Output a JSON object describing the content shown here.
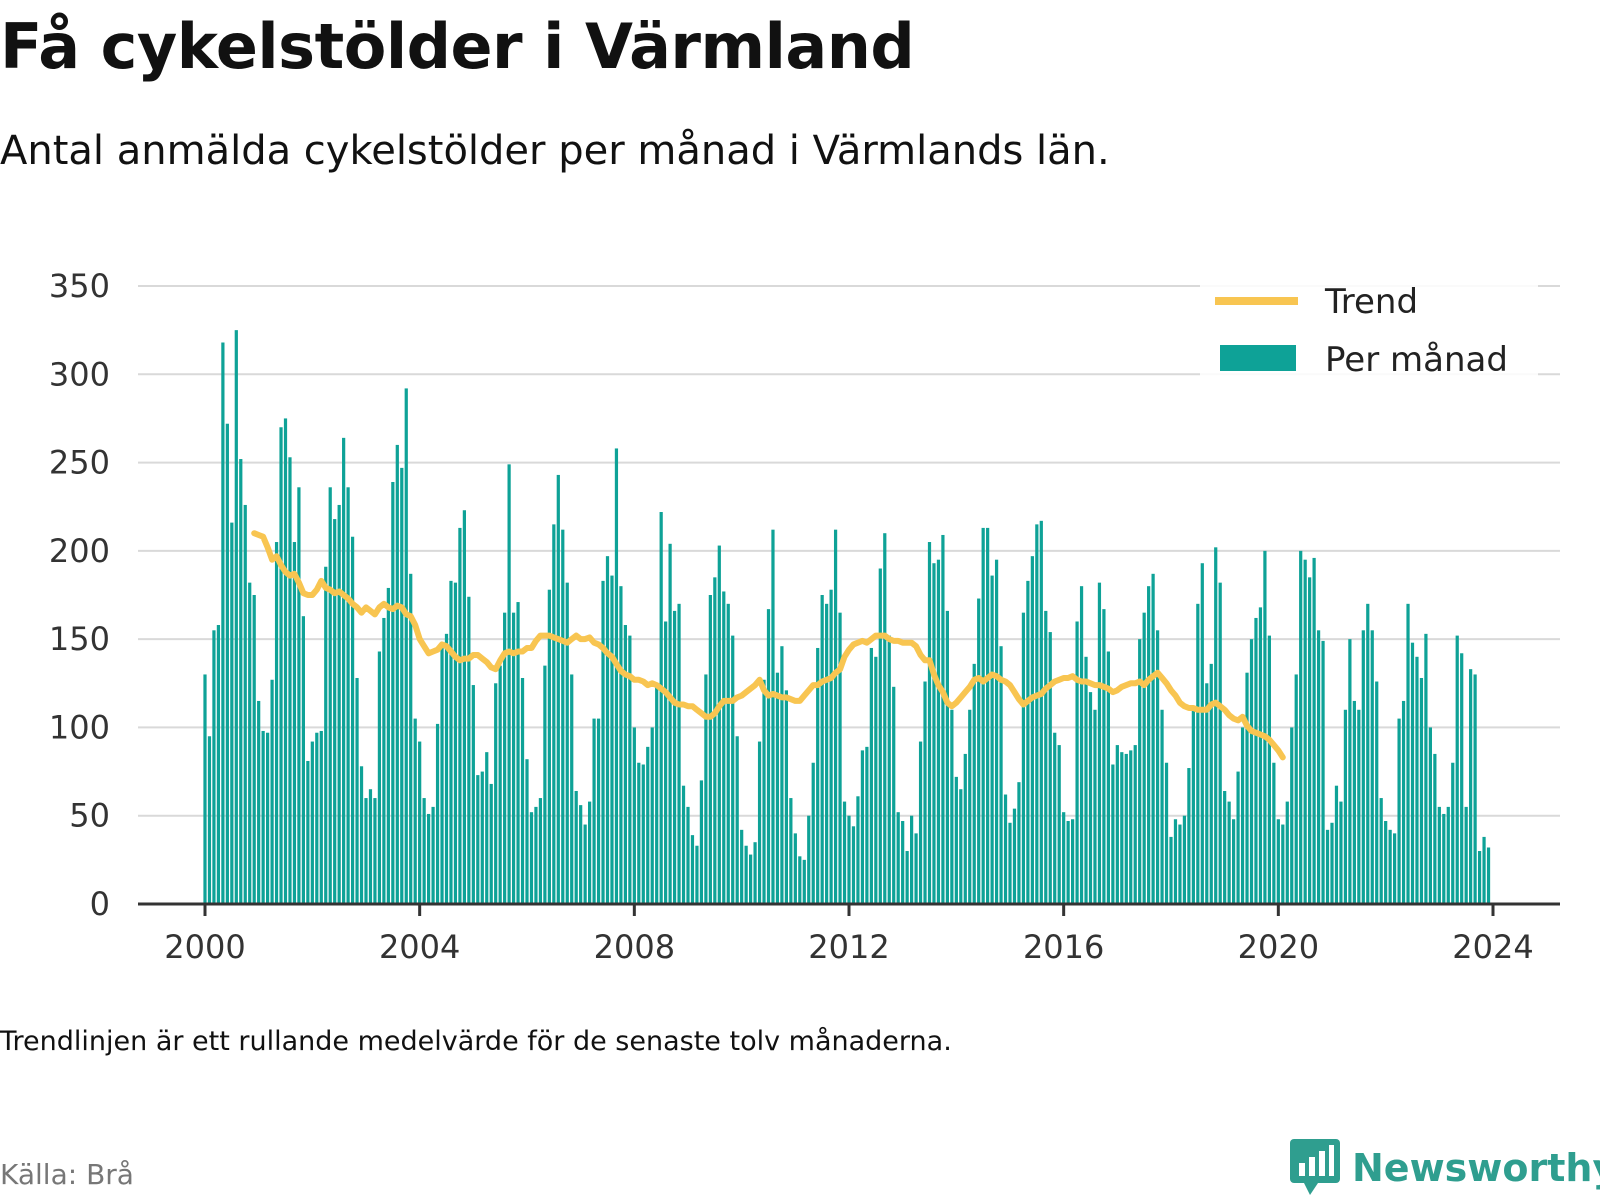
{
  "title": "Få cykelstölder i Värmland",
  "subtitle": "Antal anmälda cykelstölder per månad i Värmlands län.",
  "note": "Trendlinjen är ett rullande medelvärde för de senaste tolv månaderna.",
  "source": "Källa: Brå",
  "brand": "Newsworthy",
  "colors": {
    "bars": "#0ea297",
    "trend": "#f8c551",
    "grid": "#d9d9d9",
    "axis": "#333333",
    "brand": "#2f9e8f"
  },
  "chart_data": {
    "type": "bar",
    "ylim": [
      0,
      350
    ],
    "yticks": [
      0,
      50,
      100,
      150,
      200,
      250,
      300,
      350
    ],
    "xlim": [
      2000,
      2024
    ],
    "xticks": [
      "2000",
      "2004",
      "2008",
      "2012",
      "2016",
      "2020",
      "2024"
    ],
    "grid": true,
    "legend_position": "top-right",
    "bar_series": {
      "name": "Per månad",
      "start": "2000-01",
      "values": [
        130,
        95,
        155,
        158,
        318,
        272,
        216,
        325,
        252,
        226,
        182,
        175,
        115,
        98,
        97,
        127,
        205,
        270,
        275,
        253,
        205,
        236,
        163,
        81,
        92,
        97,
        98,
        191,
        236,
        218,
        226,
        264,
        236,
        208,
        128,
        78,
        60,
        65,
        60,
        143,
        162,
        179,
        239,
        260,
        247,
        292,
        187,
        105,
        92,
        60,
        51,
        55,
        102,
        145,
        153,
        183,
        182,
        213,
        223,
        174,
        124,
        73,
        75,
        86,
        68,
        125,
        135,
        165,
        249,
        165,
        171,
        128,
        82,
        52,
        55,
        60,
        135,
        178,
        215,
        243,
        212,
        182,
        130,
        64,
        56,
        45,
        58,
        105,
        105,
        183,
        197,
        186,
        258,
        180,
        158,
        152,
        100,
        80,
        79,
        89,
        100,
        125,
        222,
        160,
        204,
        166,
        170,
        67,
        55,
        39,
        33,
        70,
        130,
        175,
        185,
        203,
        177,
        170,
        152,
        95,
        42,
        33,
        28,
        35,
        92,
        127,
        167,
        212,
        131,
        146,
        121,
        60,
        40,
        27,
        25,
        50,
        80,
        145,
        175,
        170,
        178,
        212,
        165,
        58,
        50,
        44,
        61,
        87,
        89,
        145,
        140,
        190,
        210,
        152,
        123,
        52,
        47,
        30,
        50,
        40,
        92,
        126,
        205,
        193,
        195,
        209,
        166,
        110,
        72,
        65,
        85,
        110,
        136,
        173,
        213,
        213,
        186,
        195,
        146,
        62,
        46,
        54,
        69,
        165,
        183,
        197,
        215,
        217,
        166,
        154,
        97,
        90,
        52,
        47,
        48,
        160,
        180,
        140,
        120,
        110,
        182,
        167,
        143,
        79,
        90,
        86,
        85,
        87,
        90,
        150,
        165,
        180,
        187,
        155,
        110,
        80,
        38,
        48,
        45,
        50,
        77,
        110,
        170,
        193,
        125,
        136,
        202,
        182,
        64,
        58,
        48,
        75,
        100,
        131,
        150,
        162,
        168,
        200,
        152,
        80,
        48,
        45,
        58,
        100,
        130,
        200,
        195,
        185,
        196,
        155,
        149,
        42,
        46,
        67,
        58,
        110,
        150,
        115,
        110,
        155,
        170,
        155,
        126,
        60,
        47,
        42,
        40,
        105,
        115,
        170,
        148,
        140,
        128,
        153,
        100,
        85,
        55,
        51,
        55,
        80,
        152,
        142,
        55,
        133,
        130,
        30,
        38,
        32
      ]
    },
    "line_series": {
      "name": "Trend",
      "start": "2000-12",
      "values": [
        210,
        209,
        208,
        202,
        195,
        197,
        192,
        188,
        186,
        187,
        182,
        176,
        175,
        175,
        178,
        183,
        179,
        178,
        176,
        177,
        175,
        173,
        170,
        168,
        165,
        168,
        166,
        164,
        168,
        170,
        168,
        167,
        169,
        168,
        164,
        163,
        158,
        150,
        146,
        142,
        143,
        144,
        147,
        146,
        143,
        140,
        138,
        139,
        139,
        141,
        141,
        139,
        137,
        134,
        133,
        138,
        142,
        143,
        142,
        143,
        143,
        145,
        145,
        149,
        152,
        152,
        152,
        151,
        150,
        149,
        148,
        150,
        152,
        150,
        150,
        151,
        148,
        147,
        145,
        142,
        140,
        136,
        132,
        130,
        129,
        127,
        127,
        126,
        124,
        125,
        124,
        122,
        120,
        117,
        114,
        113,
        113,
        112,
        112,
        110,
        108,
        106,
        106,
        108,
        112,
        115,
        115,
        115,
        117,
        118,
        120,
        122,
        124,
        127,
        121,
        118,
        119,
        118,
        117,
        117,
        116,
        115,
        115,
        118,
        121,
        124,
        124,
        126,
        127,
        128,
        131,
        133,
        140,
        144,
        147,
        148,
        149,
        148,
        150,
        152,
        152,
        152,
        150,
        149,
        149,
        148,
        148,
        148,
        146,
        141,
        138,
        138,
        130,
        124,
        120,
        114,
        112,
        114,
        117,
        120,
        123,
        127,
        128,
        126,
        128,
        130,
        129,
        127,
        126,
        124,
        120,
        116,
        113,
        115,
        117,
        118,
        119,
        122,
        124,
        126,
        127,
        128,
        128,
        129,
        127,
        126,
        126,
        125,
        124,
        124,
        123,
        122,
        120,
        121,
        123,
        124,
        125,
        125,
        126,
        124,
        127,
        129,
        131,
        128,
        125,
        121,
        118,
        114,
        112,
        111,
        111,
        110,
        110,
        110,
        113,
        114,
        112,
        110,
        107,
        105,
        104,
        106,
        101,
        98,
        97,
        96,
        95,
        93,
        90,
        87,
        83
      ]
    }
  }
}
